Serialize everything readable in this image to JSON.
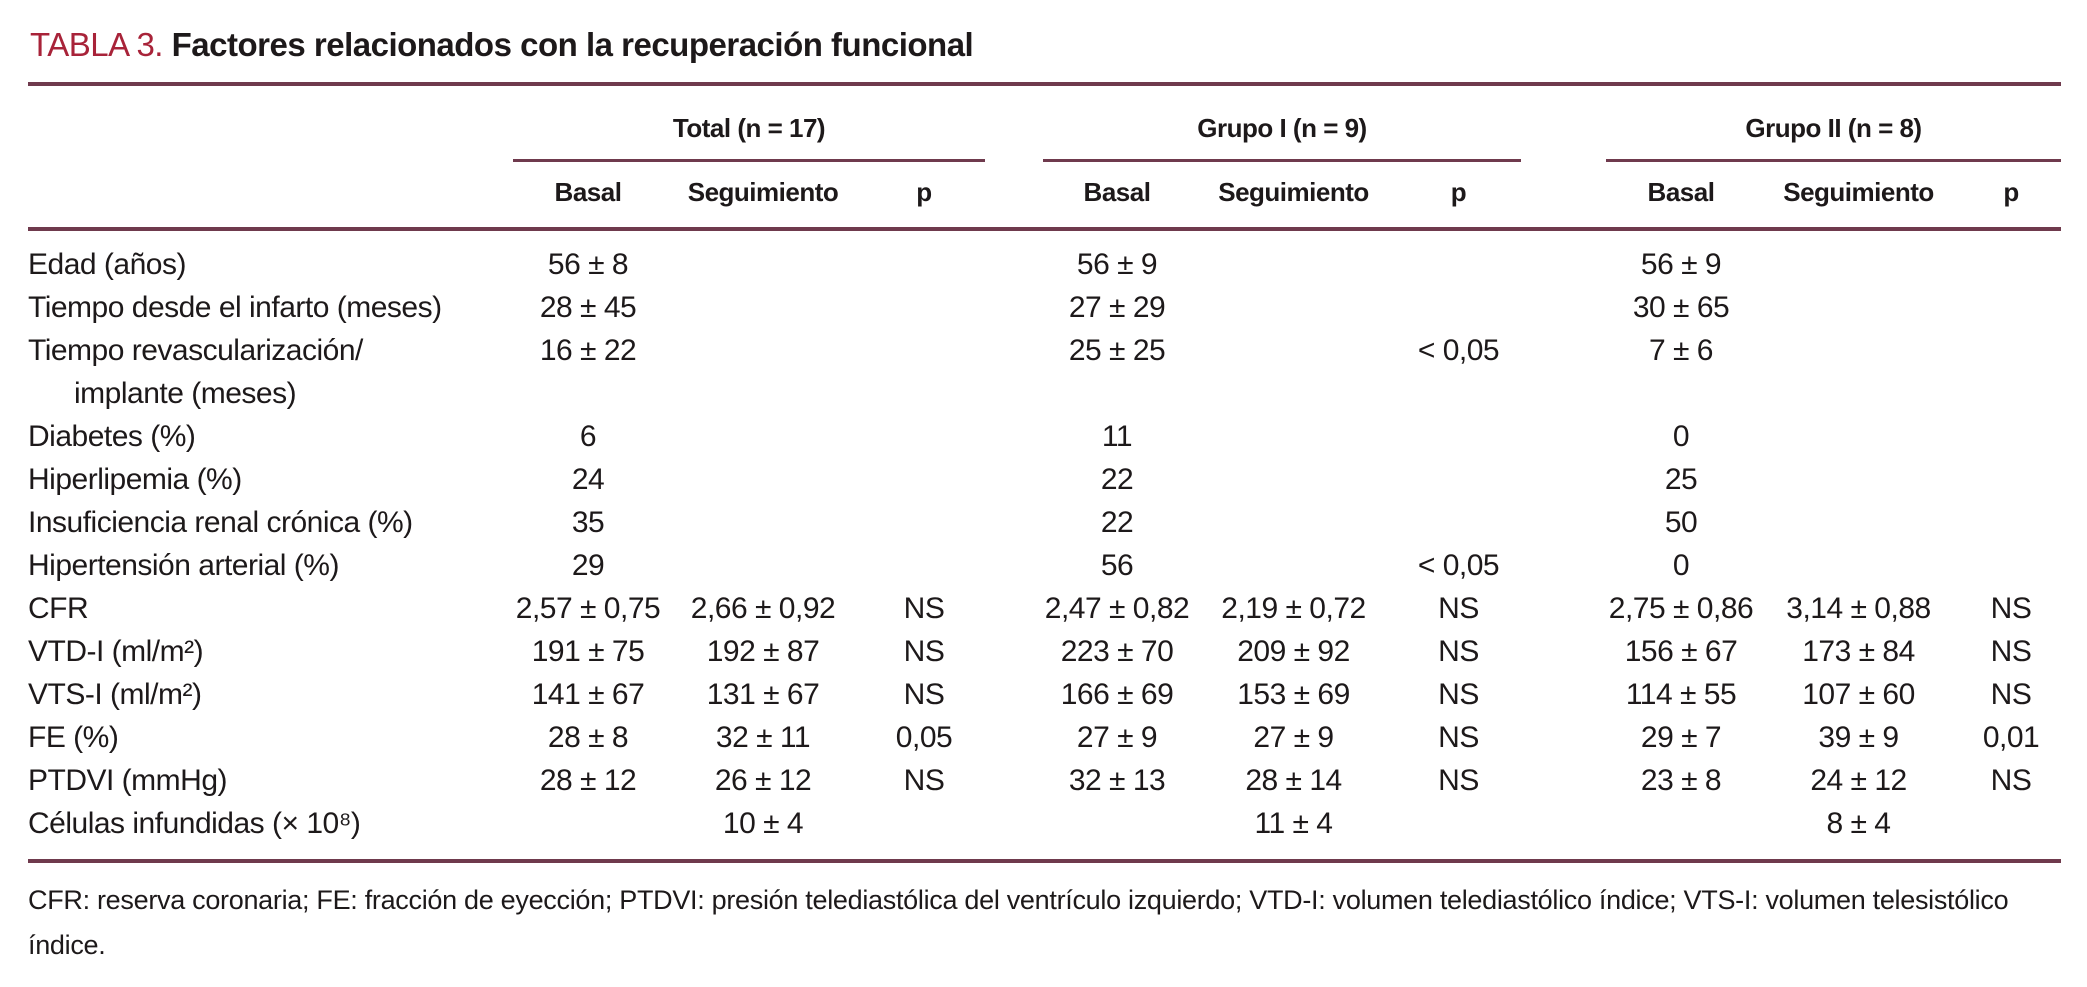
{
  "colors": {
    "accent_red": "#a82339",
    "rule_maroon": "#6f3a4d",
    "text": "#1d191a"
  },
  "title": {
    "label": "TABLA 3.",
    "text": "Factores relacionados con la recuperación funcional"
  },
  "table": {
    "groups": [
      {
        "label": "Total (n = 17)"
      },
      {
        "label": "Grupo I (n = 9)"
      },
      {
        "label": "Grupo II (n = 8)"
      }
    ],
    "subheaders": [
      "Basal",
      "Seguimiento",
      "p"
    ],
    "rows": [
      {
        "label": "Edad (años)",
        "label2": "",
        "cells": [
          "56 ± 8",
          "",
          "",
          "56 ± 9",
          "",
          "",
          "56 ± 9",
          "",
          ""
        ]
      },
      {
        "label": "Tiempo desde el infarto (meses)",
        "label2": "",
        "cells": [
          "28 ± 45",
          "",
          "",
          "27 ± 29",
          "",
          "",
          "30 ± 65",
          "",
          ""
        ]
      },
      {
        "label": "Tiempo revascularización/",
        "label2": "implante (meses)",
        "cells": [
          "16 ± 22",
          "",
          "",
          "25 ± 25",
          "",
          "< 0,05",
          "7 ± 6",
          "",
          ""
        ]
      },
      {
        "label": "Diabetes (%)",
        "label2": "",
        "cells": [
          "6",
          "",
          "",
          "11",
          "",
          "",
          "0",
          "",
          ""
        ]
      },
      {
        "label": "Hiperlipemia (%)",
        "label2": "",
        "cells": [
          "24",
          "",
          "",
          "22",
          "",
          "",
          "25",
          "",
          ""
        ]
      },
      {
        "label": "Insuficiencia renal crónica (%)",
        "label2": "",
        "cells": [
          "35",
          "",
          "",
          "22",
          "",
          "",
          "50",
          "",
          ""
        ]
      },
      {
        "label": "Hipertensión arterial (%)",
        "label2": "",
        "cells": [
          "29",
          "",
          "",
          "56",
          "",
          "< 0,05",
          "0",
          "",
          ""
        ]
      },
      {
        "label": "CFR",
        "label2": "",
        "cells": [
          "2,57 ± 0,75",
          "2,66 ± 0,92",
          "NS",
          "2,47 ± 0,82",
          "2,19 ± 0,72",
          "NS",
          "2,75 ± 0,86",
          "3,14 ± 0,88",
          "NS"
        ]
      },
      {
        "label": "VTD-I (ml/m²)",
        "label2": "",
        "cells": [
          "191 ± 75",
          "192 ± 87",
          "NS",
          "223 ± 70",
          "209 ± 92",
          "NS",
          "156 ± 67",
          "173 ± 84",
          "NS"
        ]
      },
      {
        "label": "VTS-I (ml/m²)",
        "label2": "",
        "cells": [
          "141 ± 67",
          "131 ± 67",
          "NS",
          "166 ± 69",
          "153 ± 69",
          "NS",
          "114 ± 55",
          "107 ± 60",
          "NS"
        ]
      },
      {
        "label": "FE (%)",
        "label2": "",
        "cells": [
          "28 ± 8",
          "32 ± 11",
          "0,05",
          "27 ± 9",
          "27 ± 9",
          "NS",
          "29 ± 7",
          "39 ± 9",
          "0,01"
        ]
      },
      {
        "label": "PTDVI (mmHg)",
        "label2": "",
        "cells": [
          "28 ± 12",
          "26 ± 12",
          "NS",
          "32 ± 13",
          "28 ± 14",
          "NS",
          "23 ± 8",
          "24 ± 12",
          "NS"
        ]
      },
      {
        "label": "Células infundidas (× 10⁸)",
        "label2": "",
        "cells": [
          "",
          "10 ± 4",
          "",
          "",
          "11 ± 4",
          "",
          "",
          "8 ± 4",
          ""
        ]
      }
    ],
    "footnote": "CFR: reserva coronaria; FE: fracción de eyección; PTDVI: presión telediastólica del ventrículo izquierdo; VTD-I: volumen telediastólico índice; VTS-I: volumen telesistólico índice."
  }
}
